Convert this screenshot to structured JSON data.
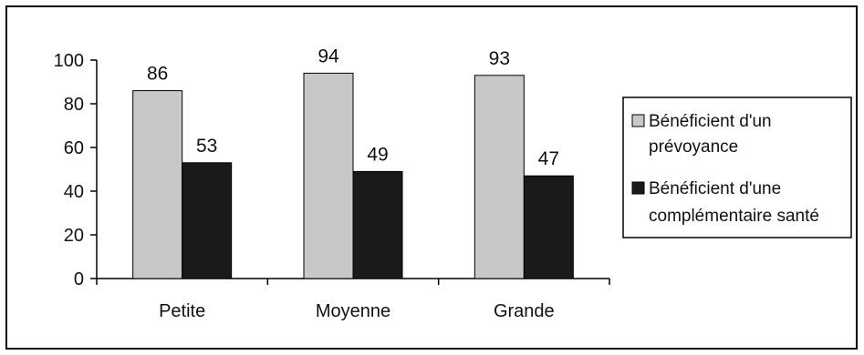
{
  "chart_data": {
    "type": "bar",
    "title": "",
    "xlabel": "",
    "ylabel": "",
    "categories": [
      "Petite",
      "Moyenne",
      "Grande"
    ],
    "series": [
      {
        "name": "Bénéficient d'un prévoyance",
        "values": [
          86,
          94,
          93
        ],
        "color": "#c8c8c8"
      },
      {
        "name": "Bénéficient d'une complémentaire santé",
        "values": [
          53,
          49,
          47
        ],
        "color": "#1a1a1a"
      }
    ],
    "ylim": [
      0,
      100
    ],
    "yticks": [
      "0",
      "20",
      "40",
      "60",
      "80",
      "100"
    ],
    "grid": false,
    "legend_position": "right"
  },
  "legend": {
    "items": [
      {
        "lines": [
          "Bénéficient d'un",
          "prévoyance"
        ]
      },
      {
        "lines": [
          "Bénéficient d'une",
          "complémentaire santé"
        ]
      }
    ]
  }
}
